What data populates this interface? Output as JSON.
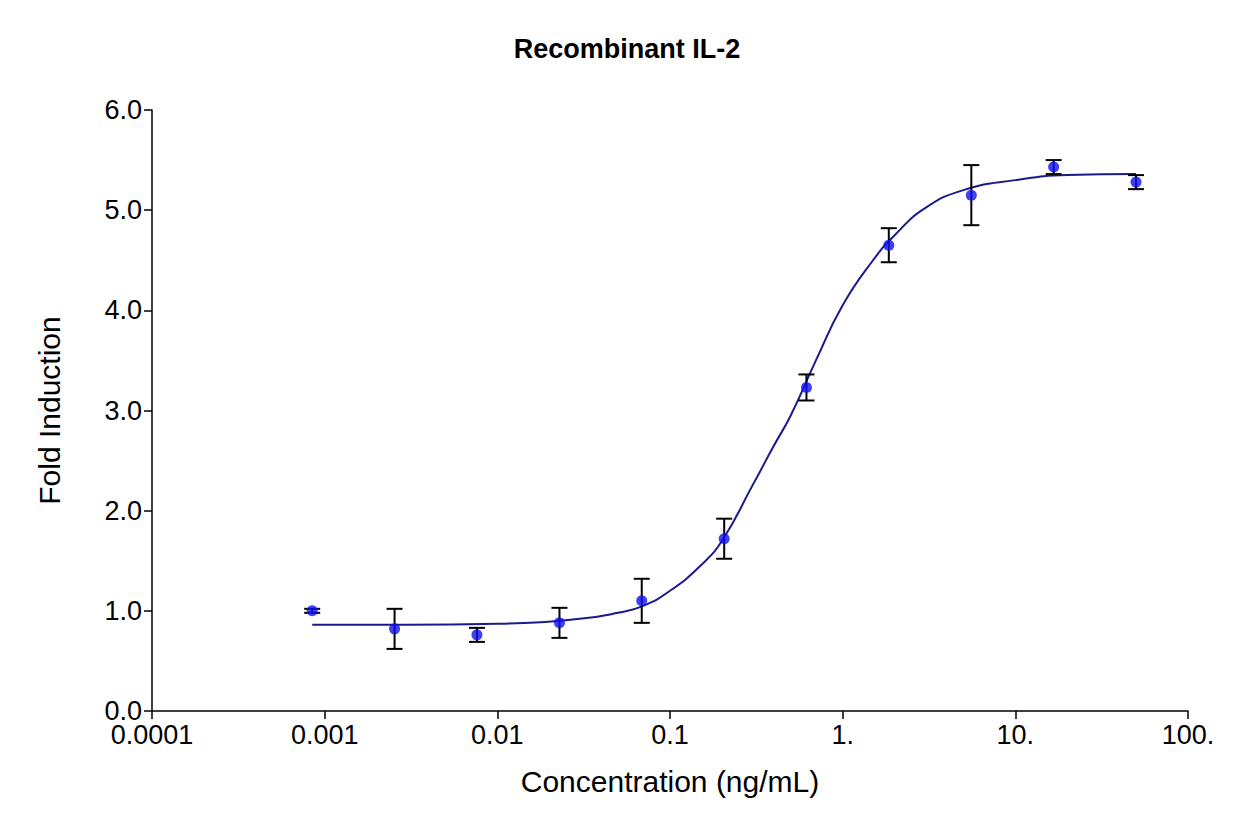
{
  "chart_data": {
    "type": "scatter",
    "title": "Recombinant IL-2",
    "x_label": "Concentration (ng/mL)",
    "y_label": "Fold Induction",
    "log": "x",
    "grid": false,
    "marker": "circle",
    "color": "#1010f0",
    "x": [
      0.000847,
      0.00254,
      0.00762,
      0.0229,
      0.0686,
      0.206,
      0.617,
      1.85,
      5.56,
      16.67,
      50
    ],
    "values": [
      1.0,
      0.82,
      0.76,
      0.88,
      1.1,
      1.72,
      3.23,
      4.65,
      5.15,
      5.43,
      5.28
    ],
    "errors": [
      0.02,
      0.2,
      0.07,
      0.15,
      0.22,
      0.2,
      0.13,
      0.17,
      0.3,
      0.07,
      0.07
    ],
    "fit": {
      "type": "line",
      "color": "#1a1a8c",
      "x": [
        0.000847,
        0.003,
        0.01,
        0.03,
        0.05,
        0.07,
        0.1,
        0.15,
        0.2,
        0.3,
        0.4,
        0.5,
        0.7,
        1,
        1.5,
        2,
        3,
        5,
        10,
        20,
        50
      ],
      "values": [
        0.86,
        0.86,
        0.87,
        0.92,
        0.98,
        1.05,
        1.2,
        1.45,
        1.7,
        2.25,
        2.65,
        2.95,
        3.5,
        4.05,
        4.5,
        4.75,
        5.02,
        5.2,
        5.3,
        5.35,
        5.36
      ]
    },
    "xlim": [
      0.0001,
      100
    ],
    "xticks": [
      0.0001,
      0.001,
      0.01,
      0.1,
      {
        "value": 1,
        "label": "1."
      },
      {
        "value": 10,
        "label": "10."
      },
      {
        "value": 100,
        "label": "100."
      }
    ],
    "ylim": [
      0,
      6
    ],
    "yticks": [
      {
        "value": 0,
        "label": "0.0"
      },
      {
        "value": 1,
        "label": "1.0"
      },
      {
        "value": 2,
        "label": "2.0"
      },
      {
        "value": 3,
        "label": "3.0"
      },
      {
        "value": 4,
        "label": "4.0"
      },
      {
        "value": 5,
        "label": "5.0"
      },
      {
        "value": 6,
        "label": "6.0"
      }
    ]
  }
}
